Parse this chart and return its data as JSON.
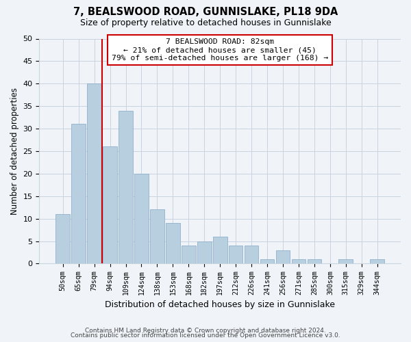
{
  "title": "7, BEALSWOOD ROAD, GUNNISLAKE, PL18 9DA",
  "subtitle": "Size of property relative to detached houses in Gunnislake",
  "xlabel": "Distribution of detached houses by size in Gunnislake",
  "ylabel": "Number of detached properties",
  "bar_labels": [
    "50sqm",
    "65sqm",
    "79sqm",
    "94sqm",
    "109sqm",
    "124sqm",
    "138sqm",
    "153sqm",
    "168sqm",
    "182sqm",
    "197sqm",
    "212sqm",
    "226sqm",
    "241sqm",
    "256sqm",
    "271sqm",
    "285sqm",
    "300sqm",
    "315sqm",
    "329sqm",
    "344sqm"
  ],
  "bar_values": [
    11,
    31,
    40,
    26,
    34,
    20,
    12,
    9,
    4,
    5,
    6,
    4,
    4,
    1,
    3,
    1,
    1,
    0,
    1,
    0,
    1
  ],
  "bar_color": "#b8cfe0",
  "bar_edge_color": "#8fb0cc",
  "vline_color": "#cc0000",
  "annotation_line1": "7 BEALSWOOD ROAD: 82sqm",
  "annotation_line2": "← 21% of detached houses are smaller (45)",
  "annotation_line3": "79% of semi-detached houses are larger (168) →",
  "annotation_box_color": "#ffffff",
  "annotation_box_edge_color": "#cc0000",
  "ylim": [
    0,
    50
  ],
  "yticks": [
    0,
    5,
    10,
    15,
    20,
    25,
    30,
    35,
    40,
    45,
    50
  ],
  "bg_color": "#f0f4f8",
  "grid_color": "#c8d4e0",
  "footnote1": "Contains HM Land Registry data © Crown copyright and database right 2024.",
  "footnote2": "Contains public sector information licensed under the Open Government Licence v3.0."
}
